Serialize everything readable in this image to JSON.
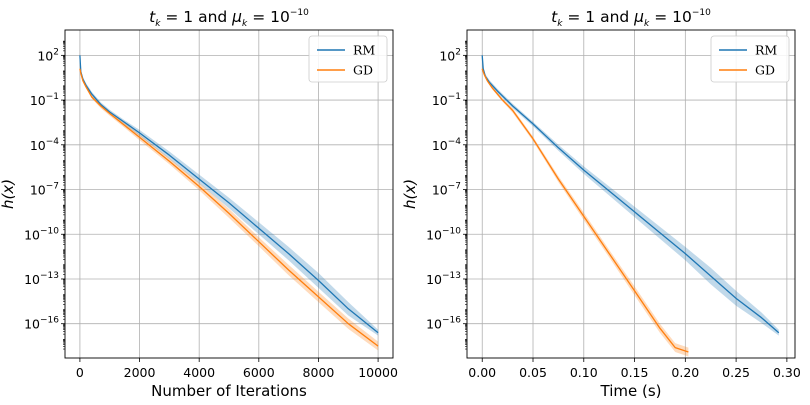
{
  "chart_data": [
    {
      "type": "line",
      "title_parts": {
        "t": "t",
        "t_sub": "k",
        "t_rest": " = 1 and ",
        "mu": "μ",
        "mu_sub": "k",
        "mu_rest": " = 10",
        "mu_exp": "−10"
      },
      "xlabel": "Number of Iterations",
      "ylabel": "h(x)",
      "x_ticks": [
        "0",
        "2000",
        "4000",
        "6000",
        "8000",
        "10000"
      ],
      "y_scale": "log",
      "y_ticks": [
        {
          "base": "10",
          "exp": "2"
        },
        {
          "base": "10",
          "exp": "−1"
        },
        {
          "base": "10",
          "exp": "−4"
        },
        {
          "base": "10",
          "exp": "−7"
        },
        {
          "base": "10",
          "exp": "−10"
        },
        {
          "base": "10",
          "exp": "−13"
        },
        {
          "base": "10",
          "exp": "−16"
        }
      ],
      "xlim": [
        -500,
        10500
      ],
      "ylog_lim": [
        3.7,
        -18.3
      ],
      "grid": true,
      "legend_position": "top-right",
      "series": [
        {
          "name": "RM",
          "color": "#1f77b4",
          "x": [
            0,
            30,
            100,
            200,
            400,
            700,
            1000,
            1500,
            2000,
            3000,
            4000,
            5000,
            6000,
            7000,
            8000,
            9000,
            10000
          ],
          "log10_y": [
            2.0,
            0.9,
            0.4,
            0.0,
            -0.6,
            -1.3,
            -1.8,
            -2.5,
            -3.2,
            -4.7,
            -6.3,
            -7.9,
            -9.6,
            -11.3,
            -13.1,
            -15.0,
            -16.6
          ],
          "band": [
            0.1,
            0.15,
            0.15,
            0.15,
            0.15,
            0.15,
            0.15,
            0.15,
            0.2,
            0.25,
            0.3,
            0.35,
            0.4,
            0.45,
            0.5,
            0.45,
            0.2
          ]
        },
        {
          "name": "GD",
          "color": "#ff7f0e",
          "x": [
            0,
            30,
            100,
            200,
            400,
            700,
            1000,
            1500,
            2000,
            3000,
            4000,
            5000,
            6000,
            7000,
            8000,
            9000,
            10000
          ],
          "log10_y": [
            1.1,
            0.8,
            0.3,
            -0.1,
            -0.8,
            -1.4,
            -1.9,
            -2.7,
            -3.5,
            -5.1,
            -6.8,
            -8.6,
            -10.5,
            -12.4,
            -14.2,
            -16.0,
            -17.5
          ],
          "band": [
            0.1,
            0.1,
            0.1,
            0.1,
            0.1,
            0.15,
            0.15,
            0.15,
            0.2,
            0.2,
            0.25,
            0.3,
            0.3,
            0.35,
            0.35,
            0.35,
            0.3
          ]
        }
      ]
    },
    {
      "type": "line",
      "title_parts": {
        "t": "t",
        "t_sub": "k",
        "t_rest": " = 1 and ",
        "mu": "μ",
        "mu_sub": "k",
        "mu_rest": " = 10",
        "mu_exp": "−10"
      },
      "xlabel": "Time (s)",
      "ylabel": "h(x)",
      "x_ticks": [
        "0.00",
        "0.05",
        "0.10",
        "0.15",
        "0.20",
        "0.25",
        "0.30"
      ],
      "y_scale": "log",
      "y_ticks": [
        {
          "base": "10",
          "exp": "2"
        },
        {
          "base": "10",
          "exp": "−1"
        },
        {
          "base": "10",
          "exp": "−4"
        },
        {
          "base": "10",
          "exp": "−7"
        },
        {
          "base": "10",
          "exp": "−10"
        },
        {
          "base": "10",
          "exp": "−13"
        },
        {
          "base": "10",
          "exp": "−16"
        }
      ],
      "xlim": [
        -0.015,
        0.308
      ],
      "ylog_lim": [
        3.7,
        -18.3
      ],
      "grid": true,
      "legend_position": "top-right",
      "series": [
        {
          "name": "RM",
          "color": "#1f77b4",
          "x": [
            0.0,
            0.001,
            0.003,
            0.007,
            0.015,
            0.03,
            0.05,
            0.075,
            0.1,
            0.125,
            0.15,
            0.175,
            0.2,
            0.225,
            0.25,
            0.275,
            0.292
          ],
          "log10_y": [
            2.0,
            1.1,
            0.6,
            0.2,
            -0.4,
            -1.4,
            -2.6,
            -4.2,
            -5.7,
            -7.1,
            -8.5,
            -9.9,
            -11.3,
            -12.8,
            -14.3,
            -15.6,
            -16.6
          ],
          "band": [
            0.1,
            0.15,
            0.15,
            0.15,
            0.15,
            0.15,
            0.15,
            0.2,
            0.25,
            0.3,
            0.35,
            0.4,
            0.45,
            0.55,
            0.5,
            0.35,
            0.2
          ]
        },
        {
          "name": "GD",
          "color": "#ff7f0e",
          "x": [
            0.0,
            0.002,
            0.005,
            0.01,
            0.02,
            0.03,
            0.05,
            0.075,
            0.1,
            0.125,
            0.15,
            0.175,
            0.19,
            0.203
          ],
          "log10_y": [
            1.1,
            0.7,
            0.3,
            -0.2,
            -1.0,
            -1.7,
            -3.6,
            -6.3,
            -8.8,
            -11.3,
            -13.8,
            -16.3,
            -17.6,
            -17.9
          ],
          "band": [
            0.1,
            0.1,
            0.1,
            0.1,
            0.1,
            0.15,
            0.15,
            0.2,
            0.25,
            0.25,
            0.3,
            0.3,
            0.3,
            0.3
          ]
        }
      ]
    }
  ]
}
